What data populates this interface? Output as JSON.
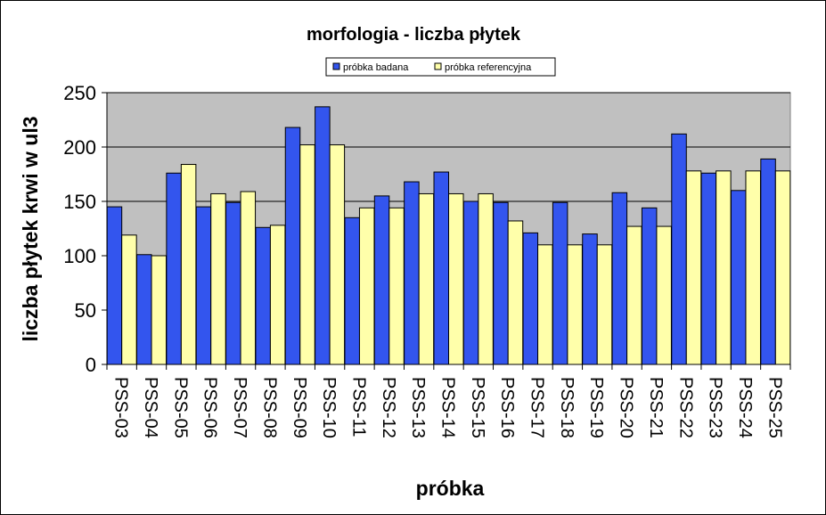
{
  "chart_data": {
    "type": "bar",
    "title": "morfologia - liczba płytek",
    "xlabel": "próbka",
    "ylabel": "liczba płytek krwi w ul3",
    "ylim": [
      0,
      250
    ],
    "yticks": [
      0,
      50,
      100,
      150,
      200,
      250
    ],
    "grid": true,
    "legend_position": "top-center",
    "plot_background": "#C0C0C0",
    "categories": [
      "PSS-03",
      "PSS-04",
      "PSS-05",
      "PSS-06",
      "PSS-07",
      "PSS-08",
      "PSS-09",
      "PSS-10",
      "PSS-11",
      "PSS-12",
      "PSS-13",
      "PSS-14",
      "PSS-15",
      "PSS-16",
      "PSS-17",
      "PSS-18",
      "PSS-19",
      "PSS-20",
      "PSS-21",
      "PSS-22",
      "PSS-23",
      "PSS-24",
      "PSS-25"
    ],
    "series": [
      {
        "name": "próbka badana",
        "color": "#3355EE",
        "values": [
          145,
          101,
          176,
          145,
          149,
          126,
          218,
          237,
          135,
          155,
          168,
          177,
          150,
          149,
          121,
          149,
          120,
          158,
          144,
          212,
          176,
          160,
          189
        ]
      },
      {
        "name": "próbka referencyjna",
        "color": "#FFFFAA",
        "values": [
          119,
          100,
          184,
          157,
          159,
          128,
          202,
          202,
          144,
          144,
          157,
          157,
          157,
          132,
          110,
          110,
          110,
          127,
          127,
          178,
          178,
          178,
          178
        ]
      }
    ]
  }
}
